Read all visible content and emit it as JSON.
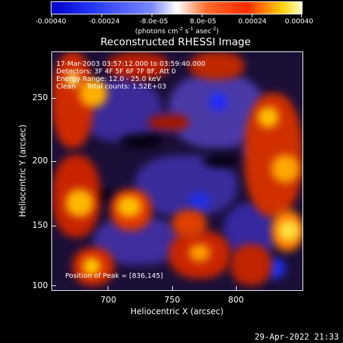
{
  "colorbar": {
    "labels": [
      "-0.00040",
      "-0.00024",
      "-8.0e-05",
      "8.0e-05",
      "0.00024",
      "0.00040"
    ],
    "units_prefix": "(photons cm",
    "units_sup1": "-2",
    "units_mid": " s",
    "units_sup2": "-1",
    "units_mid2": " asec",
    "units_sup3": "-2",
    "units_suffix": ")"
  },
  "title": "Reconstructed RHESSI Image",
  "annotations": {
    "line1": "17-Mar-2003 03:57:12.000 to 03:59:40.000",
    "line2": "Detectors: 3F 4F 5F 6F 7F 8F, Att 0",
    "line3": "Energy Range: 12.0 - 25.0 keV",
    "line4": "Clean     Total counts: 1.52E+03",
    "peak": "Position of Peak = [836,145]"
  },
  "axes": {
    "x_title": "Heliocentric X (arcsec)",
    "y_title": "Heliocentric Y (arcsec)",
    "x_ticks": [
      "700",
      "750",
      "800"
    ],
    "y_ticks": [
      "100",
      "150",
      "200",
      "250"
    ]
  },
  "timestamp": "29-Apr-2022 21:33",
  "colors": {
    "background": "#000000",
    "image_base": "#1b0f38",
    "hot": "#ff4a00",
    "peak": "#ffe000",
    "cold": "#2a3cff"
  }
}
